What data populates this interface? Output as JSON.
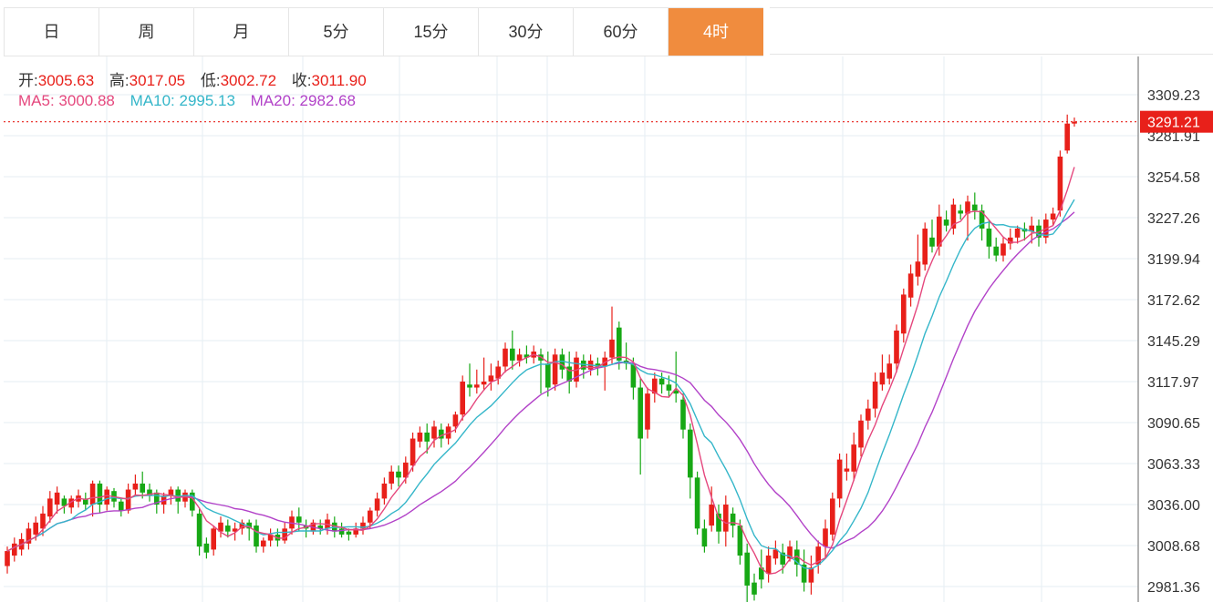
{
  "tabs": [
    {
      "label": "日",
      "active": false
    },
    {
      "label": "周",
      "active": false
    },
    {
      "label": "月",
      "active": false
    },
    {
      "label": "5分",
      "active": false
    },
    {
      "label": "15分",
      "active": false
    },
    {
      "label": "30分",
      "active": false
    },
    {
      "label": "60分",
      "active": false
    },
    {
      "label": "4时",
      "active": true
    }
  ],
  "ohlc": {
    "open_label": "开:",
    "open": "3005.63",
    "high_label": "高:",
    "high": "3017.05",
    "low_label": "低:",
    "low": "3002.72",
    "close_label": "收:",
    "close": "3011.90"
  },
  "ma": {
    "ma5_label": "MA5:",
    "ma5": "3000.88",
    "ma10_label": "MA10:",
    "ma10": "2995.13",
    "ma20_label": "MA20:",
    "ma20": "2982.68"
  },
  "current_price": "3291.21",
  "colors": {
    "up": "#e8201a",
    "down": "#17a815",
    "ma5": "#e5477d",
    "ma10": "#34b6c9",
    "ma20": "#b242c8",
    "active_tab": "#f08c3e",
    "price_line": "#e8201a",
    "grid": "#e6edf3"
  },
  "chart_data": {
    "type": "candlestick",
    "y_ticks": [
      "3309.23",
      "3281.91",
      "3254.58",
      "3227.26",
      "3199.94",
      "3172.62",
      "3145.29",
      "3117.97",
      "3090.65",
      "3063.33",
      "3036.00",
      "3008.68",
      "2981.36"
    ],
    "ylim": [
      2975,
      3330
    ],
    "candles": [
      [
        2995,
        3005,
        2990,
        3008
      ],
      [
        3002,
        3010,
        2998,
        3014
      ],
      [
        3006,
        3013,
        3002,
        3017
      ],
      [
        3010,
        3020,
        3006,
        3024
      ],
      [
        3016,
        3024,
        3012,
        3028
      ],
      [
        3020,
        3030,
        3015,
        3035
      ],
      [
        3028,
        3040,
        3024,
        3045
      ],
      [
        3036,
        3044,
        3030,
        3048
      ],
      [
        3040,
        3035,
        3030,
        3042
      ],
      [
        3034,
        3040,
        3030,
        3042
      ],
      [
        3038,
        3042,
        3034,
        3046
      ],
      [
        3040,
        3036,
        3032,
        3044
      ],
      [
        3036,
        3050,
        3028,
        3052
      ],
      [
        3050,
        3036,
        3030,
        3052
      ],
      [
        3036,
        3046,
        3032,
        3048
      ],
      [
        3045,
        3038,
        3034,
        3047
      ],
      [
        3038,
        3032,
        3028,
        3040
      ],
      [
        3032,
        3046,
        3030,
        3050
      ],
      [
        3046,
        3050,
        3042,
        3056
      ],
      [
        3050,
        3044,
        3040,
        3058
      ],
      [
        3046,
        3042,
        3038,
        3050
      ],
      [
        3044,
        3036,
        3030,
        3046
      ],
      [
        3036,
        3042,
        3030,
        3044
      ],
      [
        3042,
        3046,
        3036,
        3048
      ],
      [
        3046,
        3038,
        3030,
        3048
      ],
      [
        3038,
        3044,
        3034,
        3046
      ],
      [
        3044,
        3032,
        3028,
        3046
      ],
      [
        3030,
        3008,
        3002,
        3034
      ],
      [
        3010,
        3004,
        3000,
        3014
      ],
      [
        3006,
        3020,
        3002,
        3022
      ],
      [
        3018,
        3024,
        3014,
        3028
      ],
      [
        3022,
        3018,
        3014,
        3026
      ],
      [
        3018,
        3020,
        3012,
        3024
      ],
      [
        3020,
        3024,
        3016,
        3026
      ],
      [
        3024,
        3020,
        3012,
        3026
      ],
      [
        3022,
        3008,
        3004,
        3026
      ],
      [
        3008,
        3012,
        3004,
        3014
      ],
      [
        3012,
        3016,
        3008,
        3020
      ],
      [
        3016,
        3012,
        3008,
        3020
      ],
      [
        3012,
        3020,
        3010,
        3024
      ],
      [
        3020,
        3028,
        3016,
        3032
      ],
      [
        3028,
        3024,
        3018,
        3034
      ],
      [
        3022,
        3020,
        3014,
        3026
      ],
      [
        3018,
        3024,
        3016,
        3026
      ],
      [
        3022,
        3020,
        3016,
        3026
      ],
      [
        3020,
        3026,
        3016,
        3030
      ],
      [
        3024,
        3018,
        3014,
        3028
      ],
      [
        3020,
        3016,
        3014,
        3024
      ],
      [
        3018,
        3016,
        3012,
        3020
      ],
      [
        3016,
        3020,
        3014,
        3024
      ],
      [
        3020,
        3024,
        3016,
        3028
      ],
      [
        3024,
        3032,
        3020,
        3034
      ],
      [
        3032,
        3040,
        3028,
        3044
      ],
      [
        3040,
        3050,
        3036,
        3054
      ],
      [
        3050,
        3058,
        3046,
        3062
      ],
      [
        3058,
        3054,
        3048,
        3062
      ],
      [
        3054,
        3064,
        3050,
        3068
      ],
      [
        3062,
        3080,
        3058,
        3084
      ],
      [
        3078,
        3084,
        3074,
        3088
      ],
      [
        3084,
        3078,
        3070,
        3090
      ],
      [
        3080,
        3088,
        3074,
        3092
      ],
      [
        3086,
        3080,
        3074,
        3090
      ],
      [
        3080,
        3088,
        3076,
        3090
      ],
      [
        3088,
        3096,
        3084,
        3098
      ],
      [
        3096,
        3118,
        3092,
        3122
      ],
      [
        3116,
        3114,
        3108,
        3130
      ],
      [
        3114,
        3116,
        3110,
        3126
      ],
      [
        3116,
        3118,
        3112,
        3134
      ],
      [
        3118,
        3122,
        3112,
        3130
      ],
      [
        3120,
        3128,
        3116,
        3132
      ],
      [
        3128,
        3140,
        3124,
        3144
      ],
      [
        3140,
        3132,
        3126,
        3152
      ],
      [
        3132,
        3136,
        3128,
        3140
      ],
      [
        3136,
        3134,
        3130,
        3142
      ],
      [
        3134,
        3138,
        3130,
        3142
      ],
      [
        3136,
        3132,
        3110,
        3140
      ],
      [
        3130,
        3114,
        3108,
        3138
      ],
      [
        3116,
        3136,
        3112,
        3140
      ],
      [
        3136,
        3126,
        3120,
        3140
      ],
      [
        3128,
        3118,
        3110,
        3138
      ],
      [
        3118,
        3134,
        3114,
        3138
      ],
      [
        3132,
        3126,
        3120,
        3136
      ],
      [
        3126,
        3132,
        3122,
        3136
      ],
      [
        3130,
        3128,
        3122,
        3134
      ],
      [
        3128,
        3134,
        3112,
        3138
      ],
      [
        3134,
        3146,
        3130,
        3168
      ],
      [
        3154,
        3132,
        3126,
        3158
      ],
      [
        3132,
        3130,
        3126,
        3144
      ],
      [
        3130,
        3114,
        3106,
        3134
      ],
      [
        3114,
        3080,
        3056,
        3120
      ],
      [
        3086,
        3110,
        3080,
        3114
      ],
      [
        3110,
        3120,
        3104,
        3124
      ],
      [
        3120,
        3116,
        3110,
        3124
      ],
      [
        3116,
        3112,
        3108,
        3122
      ],
      [
        3112,
        3110,
        3104,
        3138
      ],
      [
        3106,
        3086,
        3080,
        3110
      ],
      [
        3086,
        3054,
        3040,
        3090
      ],
      [
        3054,
        3020,
        3016,
        3058
      ],
      [
        3020,
        3008,
        3004,
        3026
      ],
      [
        3022,
        3036,
        3018,
        3048
      ],
      [
        3030,
        3018,
        3010,
        3036
      ],
      [
        3018,
        3036,
        3008,
        3042
      ],
      [
        3030,
        3022,
        3014,
        3034
      ],
      [
        3022,
        3002,
        2996,
        3026
      ],
      [
        3004,
        2982,
        2970,
        3010
      ],
      [
        2984,
        2976,
        2972,
        2990
      ],
      [
        2994,
        2986,
        2980,
        3006
      ],
      [
        2990,
        3002,
        2984,
        3008
      ],
      [
        3000,
        3006,
        2996,
        3012
      ],
      [
        3004,
        2996,
        2990,
        3010
      ],
      [
        3000,
        3008,
        2998,
        3012
      ],
      [
        3006,
        2996,
        2988,
        3012
      ],
      [
        2996,
        2984,
        2978,
        3006
      ],
      [
        2984,
        2994,
        2976,
        3002
      ],
      [
        2996,
        3008,
        2990,
        3012
      ],
      [
        3008,
        3020,
        3000,
        3026
      ],
      [
        3016,
        3040,
        3012,
        3044
      ],
      [
        3040,
        3066,
        3034,
        3070
      ],
      [
        3058,
        3060,
        3052,
        3070
      ],
      [
        3058,
        3076,
        3052,
        3084
      ],
      [
        3074,
        3092,
        3068,
        3096
      ],
      [
        3092,
        3100,
        3086,
        3106
      ],
      [
        3100,
        3118,
        3094,
        3124
      ],
      [
        3116,
        3124,
        3112,
        3136
      ],
      [
        3120,
        3130,
        3116,
        3136
      ],
      [
        3130,
        3152,
        3124,
        3156
      ],
      [
        3150,
        3176,
        3144,
        3180
      ],
      [
        3174,
        3190,
        3168,
        3196
      ],
      [
        3188,
        3198,
        3182,
        3216
      ],
      [
        3196,
        3220,
        3192,
        3224
      ],
      [
        3214,
        3208,
        3204,
        3226
      ],
      [
        3208,
        3228,
        3202,
        3236
      ],
      [
        3226,
        3222,
        3218,
        3232
      ],
      [
        3220,
        3236,
        3216,
        3240
      ],
      [
        3232,
        3230,
        3226,
        3236
      ],
      [
        3230,
        3238,
        3212,
        3242
      ],
      [
        3236,
        3232,
        3226,
        3244
      ],
      [
        3232,
        3220,
        3212,
        3236
      ],
      [
        3220,
        3208,
        3200,
        3226
      ],
      [
        3208,
        3202,
        3198,
        3214
      ],
      [
        3202,
        3210,
        3198,
        3214
      ],
      [
        3210,
        3214,
        3206,
        3220
      ],
      [
        3214,
        3220,
        3210,
        3222
      ],
      [
        3220,
        3218,
        3212,
        3224
      ],
      [
        3218,
        3222,
        3210,
        3228
      ],
      [
        3222,
        3214,
        3208,
        3226
      ],
      [
        3214,
        3226,
        3210,
        3230
      ],
      [
        3226,
        3230,
        3222,
        3234
      ],
      [
        3232,
        3268,
        3228,
        3272
      ],
      [
        3272,
        3290,
        3270,
        3296
      ],
      [
        3290,
        3291.21,
        3288,
        3294
      ]
    ]
  }
}
